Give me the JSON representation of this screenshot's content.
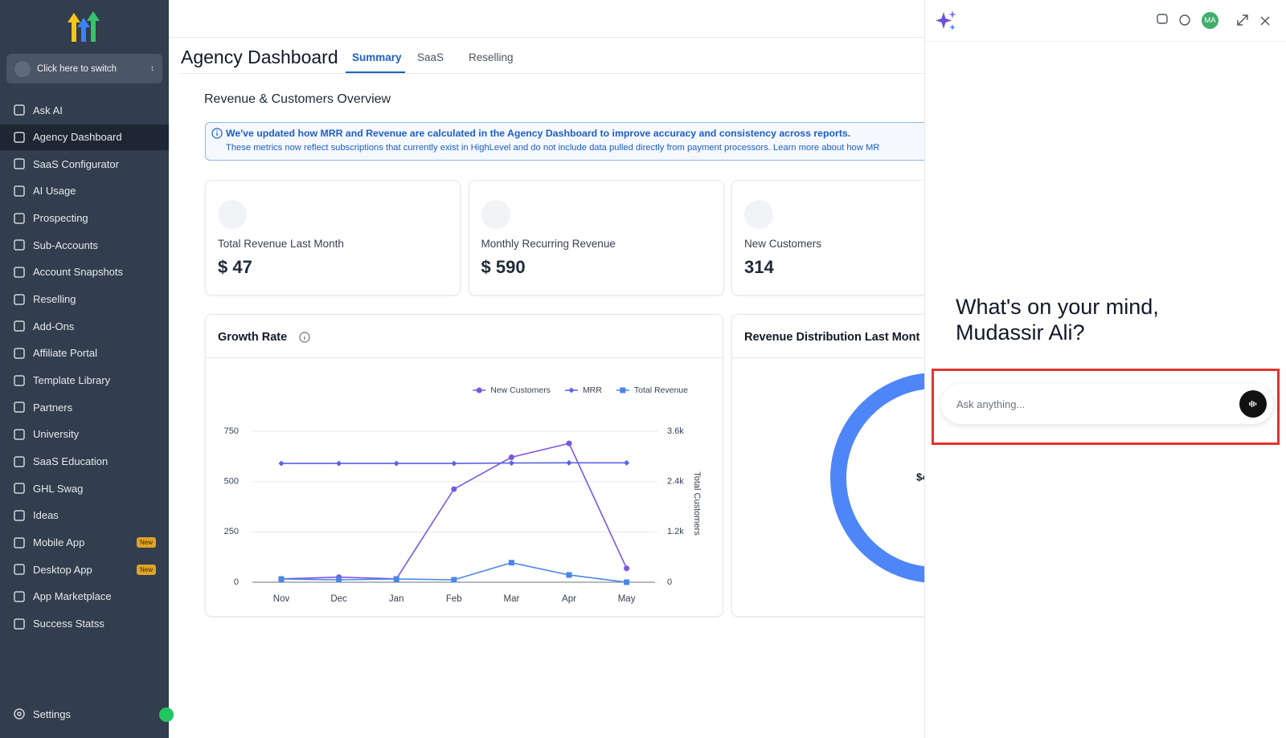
{
  "sidebar": {
    "switcher": "Click here to switch",
    "items": [
      {
        "label": "Ask AI"
      },
      {
        "label": "Agency Dashboard"
      },
      {
        "label": "SaaS Configurator"
      },
      {
        "label": "AI Usage"
      },
      {
        "label": "Prospecting"
      },
      {
        "label": "Sub-Accounts"
      },
      {
        "label": "Account Snapshots"
      },
      {
        "label": "Reselling"
      },
      {
        "label": "Add-Ons"
      },
      {
        "label": "Affiliate Portal"
      },
      {
        "label": "Template Library"
      },
      {
        "label": "Partners"
      },
      {
        "label": "University"
      },
      {
        "label": "SaaS Education"
      },
      {
        "label": "GHL Swag"
      },
      {
        "label": "Ideas"
      },
      {
        "label": "Mobile App",
        "badge": "New"
      },
      {
        "label": "Desktop App",
        "badge": "New"
      },
      {
        "label": "App Marketplace"
      },
      {
        "label": "Success Statss"
      }
    ],
    "settings": "Settings"
  },
  "header": {
    "title": "Agency Dashboard",
    "tabs": [
      "Summary",
      "SaaS",
      "Reselling"
    ]
  },
  "section_title": "Revenue & Customers Overview",
  "notice": {
    "headline": "We've updated how MRR and Revenue are calculated in the Agency Dashboard to improve accuracy and consistency across reports.",
    "body": "These metrics now reflect subscriptions that currently exist in HighLevel and do not include data pulled directly from payment processors. Learn more about how MR"
  },
  "cards": [
    {
      "label": "Total Revenue Last Month",
      "value": "$ 47"
    },
    {
      "label": "Monthly Recurring Revenue",
      "value": "$ 590"
    },
    {
      "label": "New Customers",
      "value": "314"
    }
  ],
  "chart_data": {
    "type": "line",
    "title": "Growth Rate",
    "categories": [
      "Nov",
      "Dec",
      "Jan",
      "Feb",
      "Mar",
      "Apr",
      "May"
    ],
    "ylim": [
      0,
      750
    ],
    "yticks": [
      0,
      250,
      500,
      750
    ],
    "y2lim": [
      0,
      3600
    ],
    "y2ticks": [
      0,
      {
        "value": 1200,
        "label": "1.2k"
      },
      {
        "value": 2400,
        "label": "2.4k"
      },
      {
        "value": 3600,
        "label": "3.6k"
      }
    ],
    "y2label": "Total Customers",
    "grid": true,
    "legend": "top-right",
    "series": [
      {
        "name": "New Customers",
        "color": "#7b57e0",
        "marker": "circle",
        "axis": "y2",
        "values": [
          80,
          120,
          80,
          2220,
          2980,
          3310,
          330
        ]
      },
      {
        "name": "MRR",
        "color": "#5b62e8",
        "marker": "diamond",
        "values": [
          590,
          590,
          590,
          590,
          592,
          593,
          593
        ]
      },
      {
        "name": "Total Revenue",
        "color": "#4a86e8",
        "marker": "square",
        "values": [
          16,
          12,
          16,
          12,
          97,
          36,
          0
        ]
      }
    ]
  },
  "distribution": {
    "title": "Revenue Distribution Last Mont",
    "center": "$4"
  },
  "assistant": {
    "avatar": "MA",
    "greeting": "What's on your mind, Mudassir Ali?",
    "placeholder": "Ask anything..."
  }
}
